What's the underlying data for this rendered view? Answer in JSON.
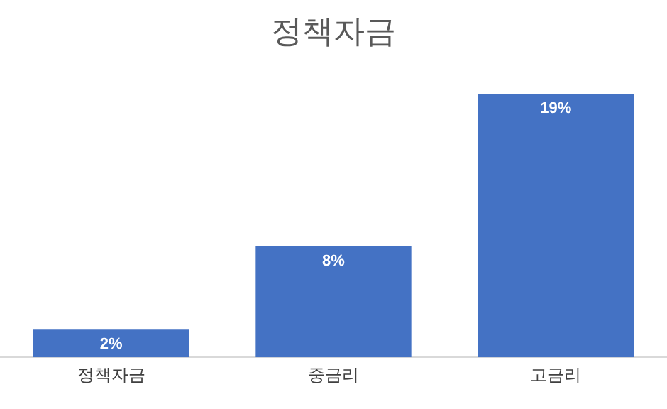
{
  "chart_data": {
    "type": "bar",
    "title": "정책자금",
    "categories": [
      "정책자금",
      "중금리",
      "고금리"
    ],
    "values": [
      2,
      8,
      19
    ],
    "value_labels": [
      "2%",
      "8%",
      "19%"
    ],
    "color": "#4472c4",
    "grid": false,
    "legend": false
  }
}
